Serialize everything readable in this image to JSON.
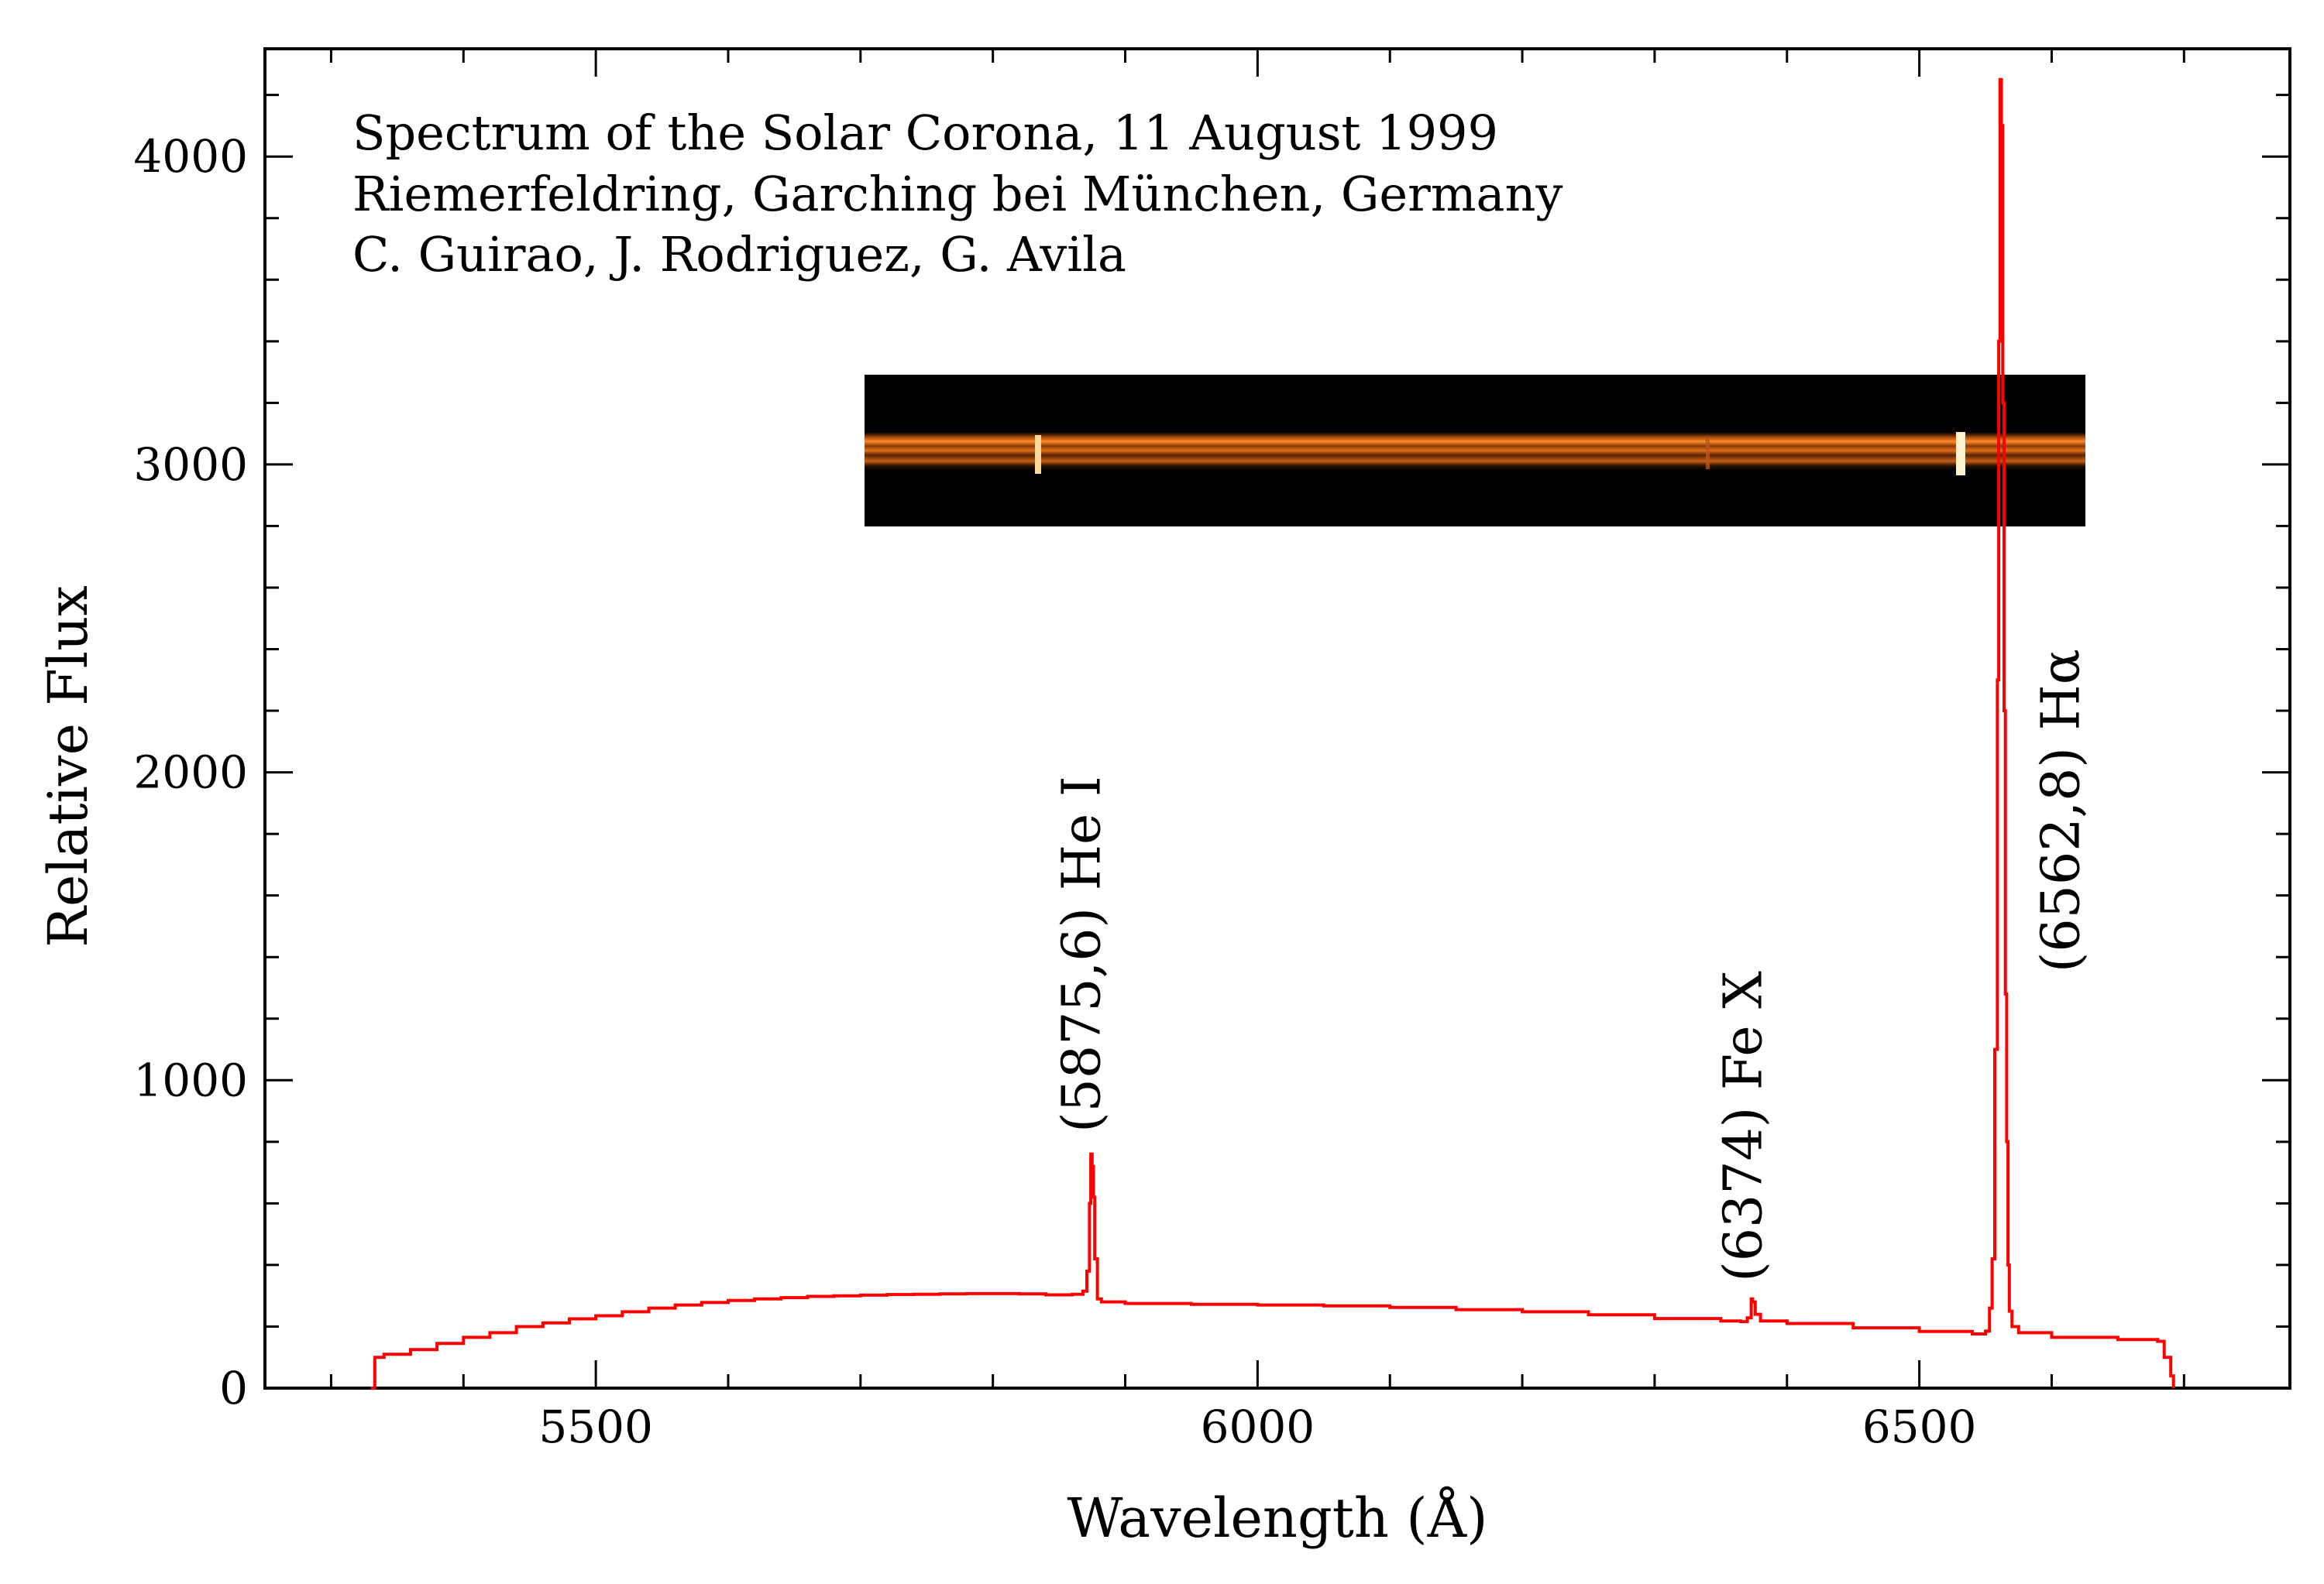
{
  "chart_data": {
    "type": "line",
    "title_lines": [
      "Spectrum of the Solar Corona,  11 August 1999",
      "Riemerfeldring, Garching bei München, Germany",
      "C. Guirao, J. Rodriguez, G. Avila"
    ],
    "xlabel": "Wavelength (Å)",
    "ylabel": "Relative Flux",
    "xlim": [
      5250,
      6780
    ],
    "ylim": [
      0,
      4350
    ],
    "x_ticks": [
      5500,
      6000,
      6500
    ],
    "y_ticks": [
      0,
      1000,
      2000,
      3000,
      4000
    ],
    "x_minor_step": 100,
    "y_minor_step": 200,
    "grid": false,
    "series": [
      {
        "color": "#ff0000",
        "x": [
          5330,
          5333,
          5340,
          5360,
          5380,
          5400,
          5420,
          5440,
          5460,
          5480,
          5500,
          5520,
          5540,
          5560,
          5580,
          5600,
          5620,
          5640,
          5660,
          5680,
          5700,
          5720,
          5740,
          5760,
          5780,
          5800,
          5820,
          5840,
          5860,
          5868,
          5871,
          5873,
          5874,
          5875,
          5876,
          5877,
          5879,
          5882,
          5900,
          5950,
          6000,
          6050,
          6100,
          6150,
          6200,
          6250,
          6300,
          6350,
          6365,
          6370,
          6373,
          6374,
          6376,
          6380,
          6400,
          6450,
          6500,
          6540,
          6550,
          6553,
          6555,
          6557,
          6559,
          6560,
          6561,
          6562,
          6563,
          6564,
          6565,
          6566,
          6567,
          6568,
          6570,
          6575,
          6600,
          6650,
          6680,
          6685,
          6690,
          6692
        ],
        "y": [
          0,
          100,
          110,
          125,
          145,
          165,
          180,
          200,
          212,
          225,
          235,
          248,
          260,
          270,
          278,
          285,
          290,
          294,
          298,
          300,
          302,
          304,
          305,
          306,
          307,
          307,
          306,
          303,
          305,
          315,
          380,
          600,
          760,
          720,
          620,
          420,
          290,
          280,
          275,
          272,
          270,
          267,
          262,
          255,
          248,
          238,
          226,
          218,
          216,
          228,
          290,
          280,
          240,
          218,
          210,
          196,
          184,
          176,
          185,
          260,
          420,
          1100,
          2300,
          3400,
          4250,
          4100,
          3200,
          2200,
          1280,
          800,
          400,
          250,
          200,
          180,
          165,
          158,
          152,
          100,
          40,
          0
        ]
      }
    ],
    "annotations": [
      {
        "text": "(5875,6) He I",
        "x": 5870,
        "y": 830
      },
      {
        "text": "(6374) Fe X",
        "x": 6370,
        "y": 345
      },
      {
        "text": "(6562,8) Hα",
        "x": 6610,
        "y": 1350
      }
    ],
    "inset": {
      "description_colors": {
        "background": "#000000",
        "band": "#ff7a1a",
        "highlight": "#ffe2a0"
      }
    }
  }
}
